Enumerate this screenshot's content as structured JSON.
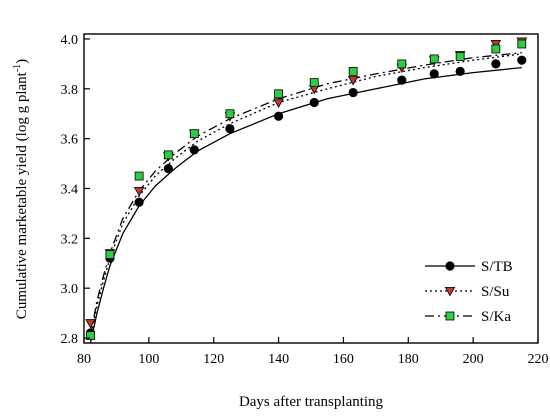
{
  "chart_data": {
    "type": "scatter",
    "xlabel": "Days after transplanting",
    "ylabel": "Cumulative marketable yield (log g plant",
    "ylabel_sup": "-1",
    "ylabel_close": ")",
    "xlim": [
      80,
      220
    ],
    "ylim": [
      2.78,
      4.02
    ],
    "xticks": [
      80,
      100,
      120,
      140,
      160,
      180,
      200,
      220
    ],
    "yticks": [
      2.8,
      3.0,
      3.2,
      3.4,
      3.6,
      3.8,
      4.0
    ],
    "xtick_labels": [
      "80",
      "100",
      "120",
      "140",
      "160",
      "180",
      "200",
      "220"
    ],
    "ytick_labels": [
      "2.8",
      "3.0",
      "3.2",
      "3.4",
      "3.6",
      "3.8",
      "4.0"
    ],
    "grid": false,
    "legend_position": "bottom-right",
    "series": [
      {
        "name": "S/TB",
        "marker": "circle",
        "marker_color": "#000000",
        "line_style": "solid",
        "x": [
          82,
          88,
          97,
          106,
          114,
          125,
          140,
          151,
          163,
          178,
          188,
          196,
          207,
          215
        ],
        "y": [
          2.82,
          3.12,
          3.345,
          3.48,
          3.555,
          3.64,
          3.69,
          3.745,
          3.785,
          3.835,
          3.86,
          3.87,
          3.9,
          3.915
        ],
        "fit": [
          [
            82,
            2.78
          ],
          [
            84,
            2.9
          ],
          [
            86,
            3.0
          ],
          [
            88,
            3.09
          ],
          [
            92,
            3.22
          ],
          [
            97,
            3.33
          ],
          [
            102,
            3.41
          ],
          [
            108,
            3.48
          ],
          [
            115,
            3.55
          ],
          [
            125,
            3.62
          ],
          [
            140,
            3.7
          ],
          [
            155,
            3.76
          ],
          [
            170,
            3.8
          ],
          [
            185,
            3.84
          ],
          [
            200,
            3.865
          ],
          [
            215,
            3.885
          ]
        ]
      },
      {
        "name": "S/Su",
        "marker": "triangle-down",
        "marker_color": "#c0392b",
        "line_style": "dotted",
        "x": [
          82,
          88,
          97,
          106,
          114,
          125,
          140,
          151,
          163,
          178,
          188,
          196,
          207,
          215
        ],
        "y": [
          2.86,
          3.14,
          3.39,
          3.53,
          3.62,
          3.69,
          3.745,
          3.8,
          3.835,
          3.885,
          3.915,
          3.935,
          3.98,
          3.99
        ],
        "fit": [
          [
            82,
            2.8
          ],
          [
            84,
            2.93
          ],
          [
            86,
            3.03
          ],
          [
            88,
            3.12
          ],
          [
            92,
            3.26
          ],
          [
            97,
            3.37
          ],
          [
            102,
            3.45
          ],
          [
            108,
            3.52
          ],
          [
            115,
            3.59
          ],
          [
            125,
            3.66
          ],
          [
            140,
            3.745
          ],
          [
            155,
            3.8
          ],
          [
            170,
            3.85
          ],
          [
            185,
            3.885
          ],
          [
            200,
            3.915
          ],
          [
            215,
            3.94
          ]
        ]
      },
      {
        "name": "S/Ka",
        "marker": "square",
        "marker_color": "#2ecc40",
        "line_style": "dashed",
        "x": [
          82,
          88,
          97,
          106,
          114,
          125,
          140,
          151,
          163,
          178,
          188,
          196,
          207,
          215
        ],
        "y": [
          2.81,
          3.135,
          3.45,
          3.535,
          3.62,
          3.7,
          3.78,
          3.825,
          3.87,
          3.9,
          3.92,
          3.93,
          3.96,
          3.98
        ],
        "fit": [
          [
            82,
            2.81
          ],
          [
            84,
            2.95
          ],
          [
            86,
            3.05
          ],
          [
            88,
            3.14
          ],
          [
            92,
            3.28
          ],
          [
            97,
            3.39
          ],
          [
            102,
            3.47
          ],
          [
            108,
            3.54
          ],
          [
            115,
            3.61
          ],
          [
            125,
            3.68
          ],
          [
            140,
            3.76
          ],
          [
            155,
            3.82
          ],
          [
            170,
            3.86
          ],
          [
            185,
            3.895
          ],
          [
            200,
            3.925
          ],
          [
            215,
            3.945
          ]
        ]
      }
    ]
  }
}
